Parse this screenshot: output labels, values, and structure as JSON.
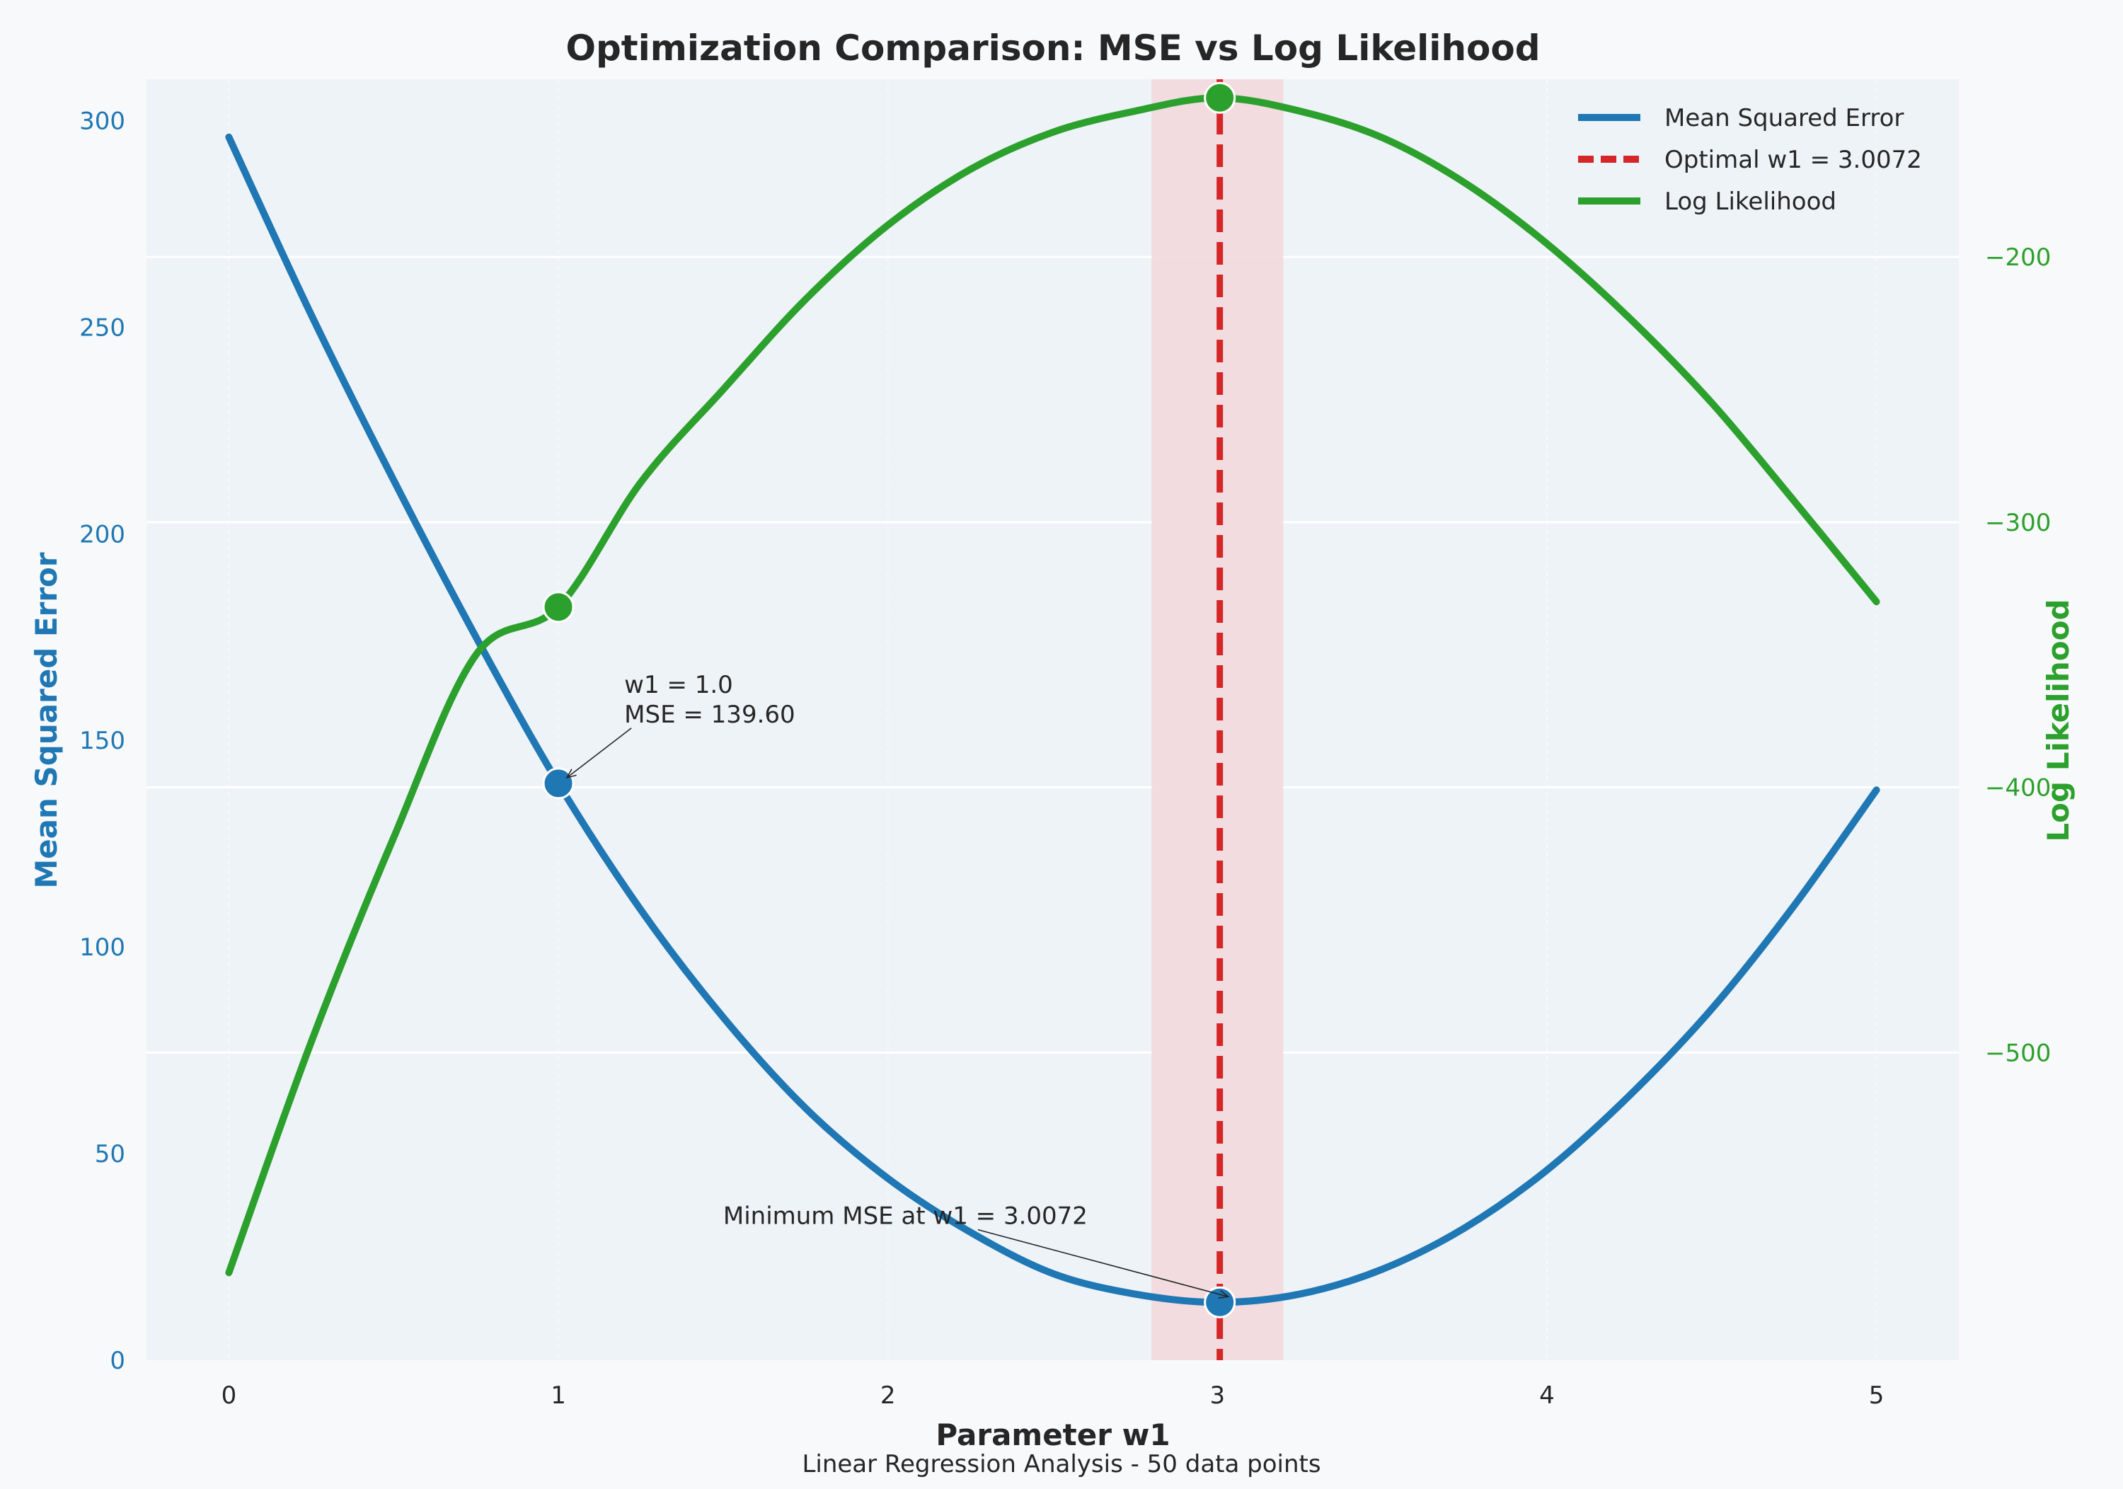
{
  "chart_data": {
    "type": "line",
    "title": "Optimization Comparison: MSE vs Log Likelihood",
    "footer": "Linear Regression Analysis - 50 data points",
    "xlabel": "Parameter w1",
    "ylabel_left": "Mean Squared Error",
    "ylabel_right": "Log Likelihood",
    "xlim": [
      -0.25,
      5.25
    ],
    "ylim_left": [
      0,
      310
    ],
    "ylim_right": [
      -616,
      -133
    ],
    "x_ticks": [
      "0",
      "1",
      "2",
      "3",
      "4",
      "5"
    ],
    "y_left_ticks": [
      "0",
      "50",
      "100",
      "150",
      "200",
      "250",
      "300"
    ],
    "y_right_ticks": [
      "−500",
      "−400",
      "−300",
      "−200"
    ],
    "grid": true,
    "legend_position": "top-right",
    "colors": {
      "mse": "#1f77b4",
      "loglik": "#2ca02c",
      "optimal": "#d62728",
      "band": "#f2d7da"
    },
    "optimal_band": [
      2.8,
      3.2
    ],
    "series": [
      {
        "name": "Mean Squared Error",
        "axis": "left",
        "x": [
          0,
          0.25,
          0.5,
          0.75,
          1,
          1.25,
          1.5,
          1.75,
          2,
          2.25,
          2.5,
          2.75,
          3,
          3.25,
          3.5,
          3.75,
          4,
          4.25,
          4.5,
          4.75,
          5
        ],
        "values": [
          296,
          253,
          213,
          175,
          139.6,
          109,
          83,
          61,
          44,
          31,
          21,
          16,
          14,
          16,
          22,
          32,
          46,
          64,
          85,
          110,
          138
        ]
      },
      {
        "name": "Log Likelihood",
        "axis": "right",
        "x": [
          0,
          0.25,
          0.5,
          0.75,
          1,
          1.25,
          1.5,
          1.75,
          2,
          2.25,
          2.5,
          2.75,
          3,
          3.25,
          3.5,
          3.75,
          4,
          4.25,
          4.5,
          4.75,
          5
        ],
        "values": [
          -583,
          -496,
          -419,
          -350,
          -332,
          -285,
          -250,
          -216,
          -188,
          -167,
          -153,
          -145,
          -140,
          -145,
          -155,
          -172,
          -195,
          -223,
          -255,
          -292,
          -330
        ]
      },
      {
        "name": "Optimal w1 = 3.0072",
        "axis": "left",
        "type": "vline",
        "x": 3.0072
      }
    ],
    "markers": [
      {
        "series": "mse",
        "x": 1,
        "y": 139.6
      },
      {
        "series": "mse",
        "x": 3.0072,
        "y": 14
      },
      {
        "series": "loglik",
        "x": 1,
        "y": -332
      },
      {
        "series": "loglik",
        "x": 3.0072,
        "y": -140
      }
    ],
    "annotations": [
      {
        "lines": [
          "w1 = 1.0",
          "MSE = 139.60"
        ],
        "text_x": 1.2,
        "text_y": 160,
        "arrow_x": 1,
        "arrow_y": 139.6
      },
      {
        "lines": [
          "Minimum MSE at w1 = 3.0072"
        ],
        "text_x": 1.5,
        "text_y": 35,
        "arrow_x": 3.0072,
        "arrow_y": 14
      }
    ]
  }
}
